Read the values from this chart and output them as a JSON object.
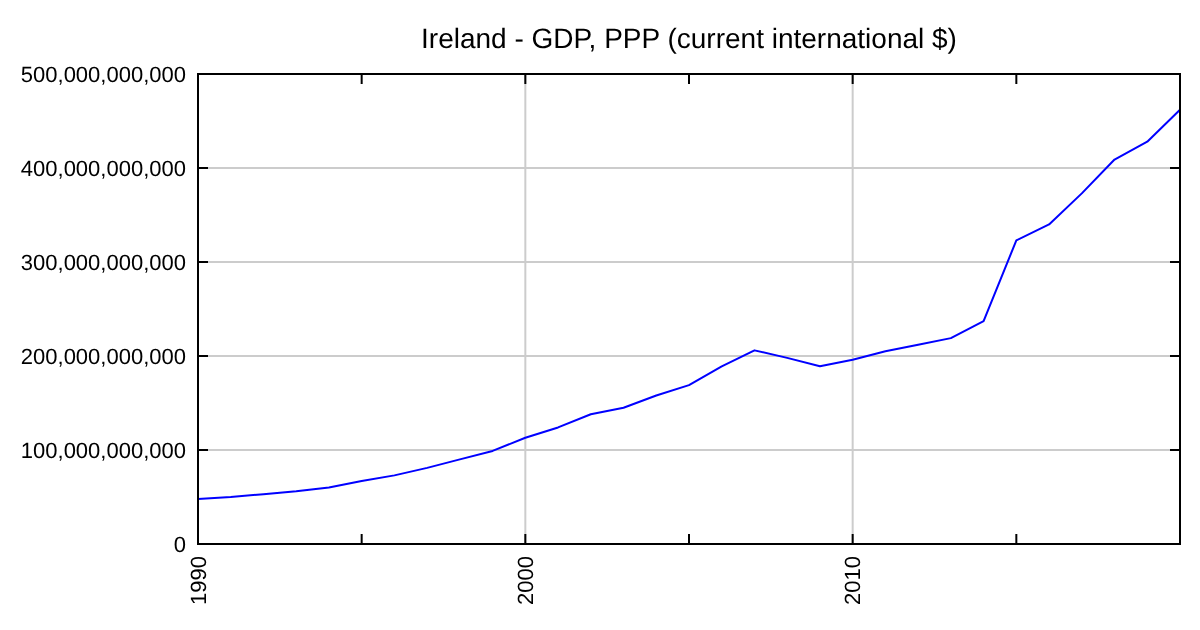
{
  "chart_data": {
    "type": "line",
    "title": "Ireland - GDP, PPP (current international $)",
    "x": [
      1990,
      1991,
      1992,
      1993,
      1994,
      1995,
      1996,
      1997,
      1998,
      1999,
      2000,
      2001,
      2002,
      2003,
      2004,
      2005,
      2006,
      2007,
      2008,
      2009,
      2010,
      2011,
      2012,
      2013,
      2014,
      2015,
      2016,
      2017,
      2018,
      2019,
      2020
    ],
    "series": [
      {
        "color": "#0000ff",
        "values": [
          48000000000,
          50000000000,
          53000000000,
          56000000000,
          60000000000,
          67000000000,
          73000000000,
          81000000000,
          90000000000,
          99000000000,
          113000000000,
          124000000000,
          138000000000,
          145000000000,
          158000000000,
          169000000000,
          189000000000,
          206000000000,
          198000000000,
          189000000000,
          196000000000,
          205000000000,
          212000000000,
          219000000000,
          237000000000,
          323000000000,
          340000000000,
          373000000000,
          409000000000,
          428000000000,
          462000000000
        ]
      }
    ],
    "xlim": [
      1990,
      2020
    ],
    "xticks": [
      1990,
      {
        "value": 1995,
        "label": null
      },
      2000,
      {
        "value": 2005,
        "label": null
      },
      2010,
      {
        "value": 2015,
        "label": null
      }
    ],
    "ylim": [
      0,
      500000000000
    ],
    "yticks": [
      0,
      {
        "value": 100000000000,
        "label": "100,000,000,000"
      },
      {
        "value": 200000000000,
        "label": "200,000,000,000"
      },
      {
        "value": 300000000000,
        "label": "300,000,000,000"
      },
      {
        "value": 400000000000,
        "label": "400,000,000,000"
      },
      {
        "value": 500000000000,
        "label": "500,000,000,000"
      }
    ],
    "grid": true
  }
}
